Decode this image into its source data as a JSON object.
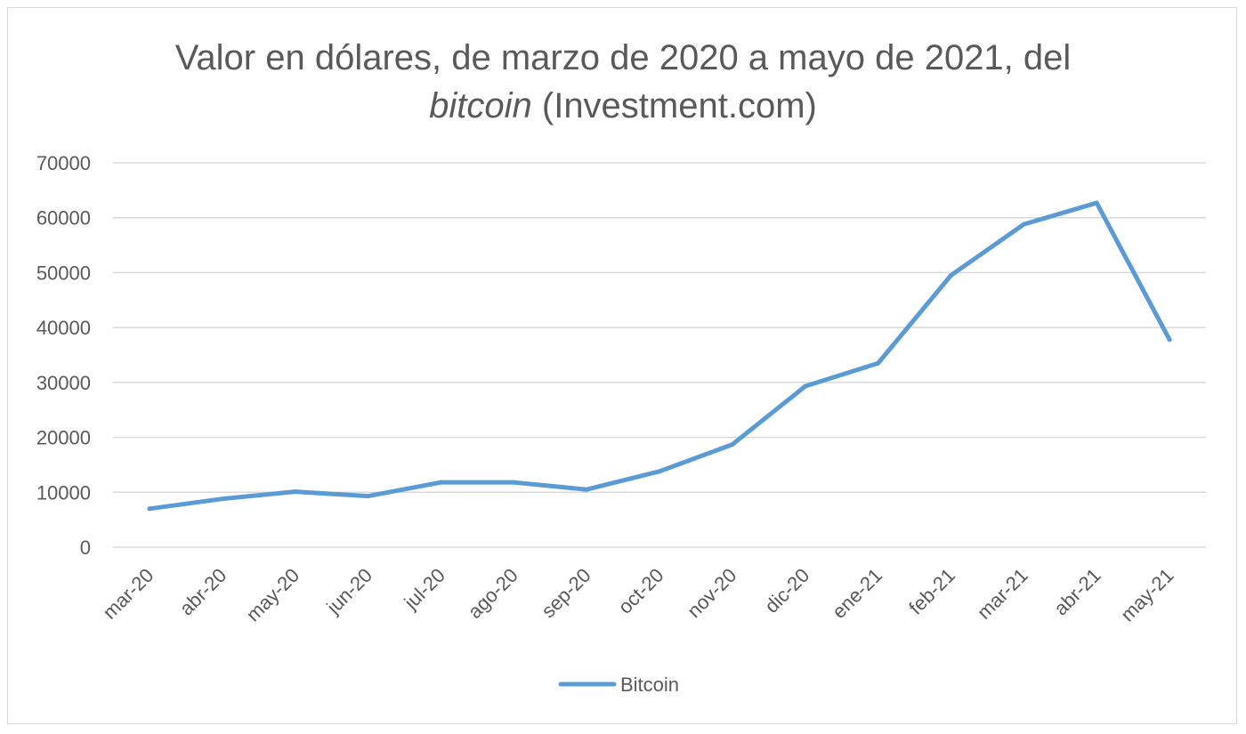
{
  "chart_data": {
    "type": "line",
    "title_parts": [
      "Valor en dólares, de marzo de 2020 a mayo de 2021, del",
      "bitcoin",
      " (Investment.com)"
    ],
    "categories": [
      "mar-20",
      "abr-20",
      "may-20",
      "jun-20",
      "jul-20",
      "ago-20",
      "sep-20",
      "oct-20",
      "nov-20",
      "dic-20",
      "ene-21",
      "feb-21",
      "mar-21",
      "abr-21",
      "may-21"
    ],
    "series": [
      {
        "name": "Bitcoin",
        "color": "#5b9bd5",
        "values": [
          7000,
          8800,
          10100,
          9300,
          11800,
          11800,
          10500,
          13800,
          18700,
          29300,
          33500,
          49500,
          58800,
          62700,
          37800
        ]
      }
    ],
    "yticks": [
      "0",
      "10000",
      "20000",
      "30000",
      "40000",
      "50000",
      "60000",
      "70000"
    ],
    "ylim": [
      0,
      70000
    ],
    "grid": true,
    "legend": "bottom"
  }
}
